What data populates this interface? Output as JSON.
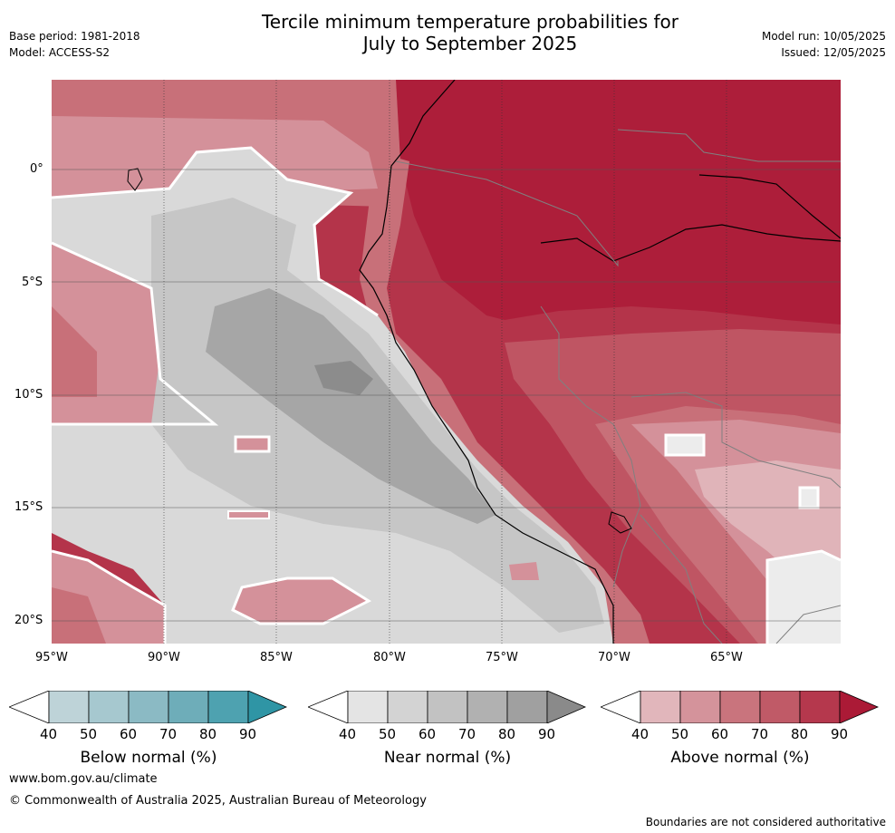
{
  "header": {
    "title_line1": "Tercile minimum temperature probabilities for",
    "title_line2": "July to September 2025",
    "base_period": "Base period: 1981-2018",
    "model": "Model: ACCESS-S2",
    "model_run": "Model run: 10/05/2025",
    "issued": "Issued: 12/05/2025"
  },
  "map": {
    "lat_labels": [
      "0°",
      "5°S",
      "10°S",
      "15°S",
      "20°S"
    ],
    "lon_labels": [
      "95°W",
      "90°W",
      "85°W",
      "80°W",
      "75°W",
      "70°W",
      "65°W"
    ],
    "colors": {
      "ocean_near_low": "#d9d9d9",
      "near_50": "#c6c6c6",
      "near_60": "#a6a6a6",
      "near_70": "#8c8c8c",
      "above_40": "#e0b4b9",
      "above_50": "#d4919a",
      "above_60": "#c87079",
      "above_70": "#bf5563",
      "above_80": "#b4344a",
      "above_90": "#ad1e3a",
      "white_40": "#ececec"
    }
  },
  "colorbars": [
    {
      "label": "Below normal (%)",
      "ticks": [
        "40",
        "50",
        "60",
        "70",
        "80",
        "90"
      ],
      "colors": [
        "#ffffff",
        "#bed3d8",
        "#a6c8cf",
        "#8bbac4",
        "#6eadb9",
        "#4ea2b0",
        "#2f95a5"
      ]
    },
    {
      "label": "Near normal (%)",
      "ticks": [
        "40",
        "50",
        "60",
        "70",
        "80",
        "90"
      ],
      "colors": [
        "#ffffff",
        "#e4e4e4",
        "#d3d3d3",
        "#c2c2c2",
        "#b1b1b1",
        "#a0a0a0",
        "#8a8a8a"
      ]
    },
    {
      "label": "Above normal (%)",
      "ticks": [
        "40",
        "50",
        "60",
        "70",
        "80",
        "90"
      ],
      "colors": [
        "#ffffff",
        "#e1b6bb",
        "#d4939b",
        "#c9747d",
        "#c05a67",
        "#b5384d",
        "#ab1a36"
      ]
    }
  ],
  "footer": {
    "url": "www.bom.gov.au/climate",
    "copyright": "© Commonwealth of Australia 2025, Australian Bureau of Meteorology",
    "disclaimer": "Boundaries are not considered authoritative"
  }
}
